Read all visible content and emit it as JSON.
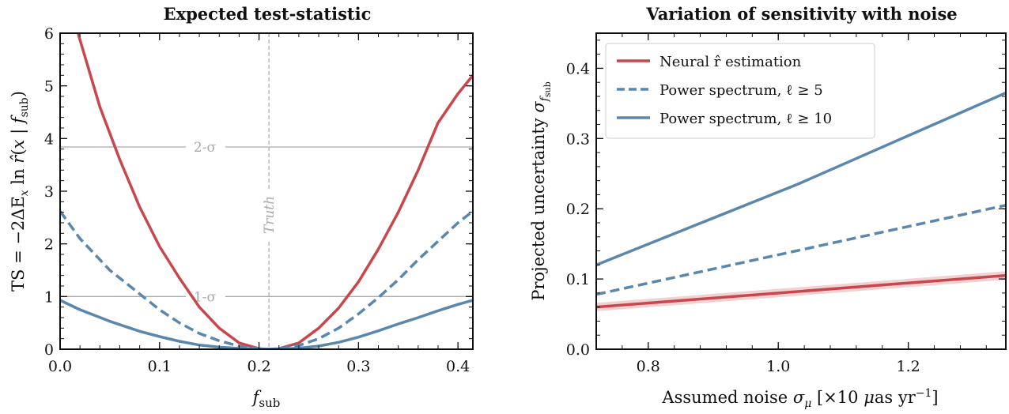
{
  "chart_data": [
    {
      "type": "line",
      "title": "Expected test-statistic",
      "xlabel": "f_sub",
      "ylabel": "TS = −2ΔE_x ln r̂(x | f_sub)",
      "xlim": [
        0.0,
        0.415
      ],
      "ylim": [
        0,
        6
      ],
      "xticks": [
        "0.0",
        "0.1",
        "0.2",
        "0.3",
        "0.4"
      ],
      "yticks": [
        "0",
        "1",
        "2",
        "3",
        "4",
        "5",
        "6"
      ],
      "grid": false,
      "annotations": {
        "one_sigma": {
          "label": "1-σ",
          "y": 1.0
        },
        "two_sigma": {
          "label": "2-σ",
          "y": 3.84
        },
        "truth": {
          "label": "Truth",
          "x": 0.21
        }
      },
      "series": [
        {
          "color": "#c8474d",
          "style": "solid",
          "x": [
            0.018,
            0.04,
            0.06,
            0.08,
            0.1,
            0.12,
            0.14,
            0.16,
            0.18,
            0.2,
            0.21,
            0.22,
            0.24,
            0.26,
            0.28,
            0.3,
            0.32,
            0.34,
            0.36,
            0.38,
            0.4,
            0.415
          ],
          "y": [
            6.0,
            4.6,
            3.6,
            2.7,
            1.95,
            1.35,
            0.8,
            0.4,
            0.12,
            0.01,
            0.0,
            0.01,
            0.12,
            0.4,
            0.78,
            1.28,
            1.9,
            2.6,
            3.4,
            4.3,
            4.85,
            5.2
          ]
        },
        {
          "color": "#5a87ad",
          "style": "dashed",
          "x": [
            0.0,
            0.02,
            0.05,
            0.08,
            0.1,
            0.12,
            0.14,
            0.16,
            0.18,
            0.2,
            0.21,
            0.22,
            0.24,
            0.26,
            0.28,
            0.3,
            0.32,
            0.34,
            0.36,
            0.38,
            0.4,
            0.415
          ],
          "y": [
            2.62,
            2.1,
            1.5,
            1.05,
            0.75,
            0.5,
            0.3,
            0.16,
            0.06,
            0.01,
            0.0,
            0.01,
            0.07,
            0.2,
            0.4,
            0.67,
            0.98,
            1.32,
            1.7,
            2.05,
            2.4,
            2.62
          ]
        },
        {
          "color": "#5a87ad",
          "style": "solid",
          "x": [
            0.0,
            0.02,
            0.05,
            0.08,
            0.1,
            0.12,
            0.14,
            0.16,
            0.18,
            0.2,
            0.21,
            0.22,
            0.24,
            0.26,
            0.28,
            0.3,
            0.32,
            0.34,
            0.36,
            0.38,
            0.4,
            0.415
          ],
          "y": [
            0.93,
            0.75,
            0.53,
            0.34,
            0.24,
            0.15,
            0.08,
            0.04,
            0.015,
            0.002,
            0.0,
            0.002,
            0.02,
            0.06,
            0.13,
            0.23,
            0.35,
            0.48,
            0.6,
            0.73,
            0.85,
            0.93
          ]
        }
      ]
    },
    {
      "type": "line",
      "title": "Variation of sensitivity with noise",
      "xlabel": "Assumed noise σ_μ [×10 μas yr⁻¹]",
      "ylabel": "Projected uncertainty σ_f_sub",
      "xlim": [
        0.72,
        1.35
      ],
      "ylim": [
        0.0,
        0.45
      ],
      "xticks": [
        "0.8",
        "1.0",
        "1.2"
      ],
      "yticks": [
        "0.0",
        "0.1",
        "0.2",
        "0.3",
        "0.4"
      ],
      "grid": false,
      "legend": "upper-left",
      "series": [
        {
          "name": "Neural r̂ estimation",
          "color": "#c8474d",
          "style": "solid",
          "band": 0.006,
          "x": [
            0.72,
            1.35
          ],
          "y": [
            0.06,
            0.105
          ]
        },
        {
          "name": "Power spectrum, ℓ ≥ 5",
          "color": "#5a87ad",
          "style": "dashed",
          "x": [
            0.72,
            1.35
          ],
          "y": [
            0.078,
            0.205
          ]
        },
        {
          "name": "Power spectrum, ℓ ≥ 10",
          "color": "#5a87ad",
          "style": "solid",
          "x": [
            0.72,
            1.03,
            1.35
          ],
          "y": [
            0.12,
            0.235,
            0.365
          ]
        }
      ]
    }
  ]
}
